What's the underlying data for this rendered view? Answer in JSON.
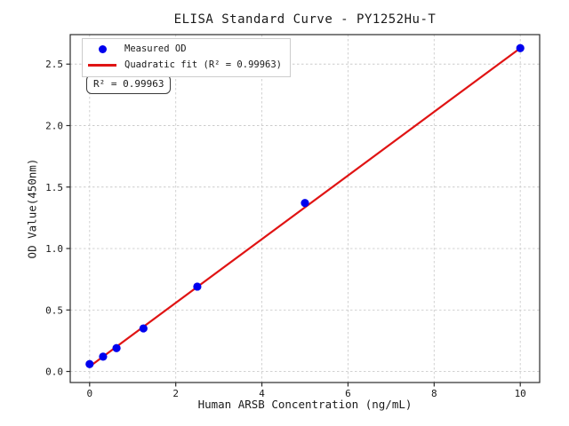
{
  "figure": {
    "background": "#ffffff"
  },
  "chart_data": {
    "type": "scatter",
    "title": "ELISA Standard Curve - PY1252Hu-T",
    "xlabel": "Human ARSB Concentration (ng/mL)",
    "ylabel": "OD Value(450nm)",
    "xlim": [
      -0.45,
      10.45
    ],
    "ylim": [
      -0.09,
      2.74
    ],
    "x_ticks": [
      0,
      2,
      4,
      6,
      8,
      10
    ],
    "x_tick_labels": [
      "0",
      "2",
      "4",
      "6",
      "8",
      "10"
    ],
    "y_ticks": [
      0,
      0.5,
      1,
      1.5,
      2,
      2.5
    ],
    "y_tick_labels": [
      "0.0",
      "0.5",
      "1.0",
      "1.5",
      "2.0",
      "2.5"
    ],
    "grid": true,
    "legend_position": "upper-left",
    "annotation": "R² = 0.99963",
    "series": [
      {
        "name": "Measured OD",
        "kind": "scatter",
        "color": "#0000ee",
        "x": [
          0,
          0.3125,
          0.625,
          1.25,
          2.5,
          5,
          10
        ],
        "y": [
          0.06,
          0.12,
          0.19,
          0.35,
          0.69,
          1.37,
          2.63
        ]
      },
      {
        "name": "Quadratic fit (R² = 0.99963)",
        "kind": "line",
        "color": "#e01414",
        "x": [
          0,
          10
        ],
        "y": [
          0.04,
          2.63
        ]
      }
    ]
  },
  "colors": {
    "grid": "#cccccc",
    "spine": "#2b2b2b",
    "text": "#1a1a1a",
    "legend_border": "#cccccc"
  }
}
